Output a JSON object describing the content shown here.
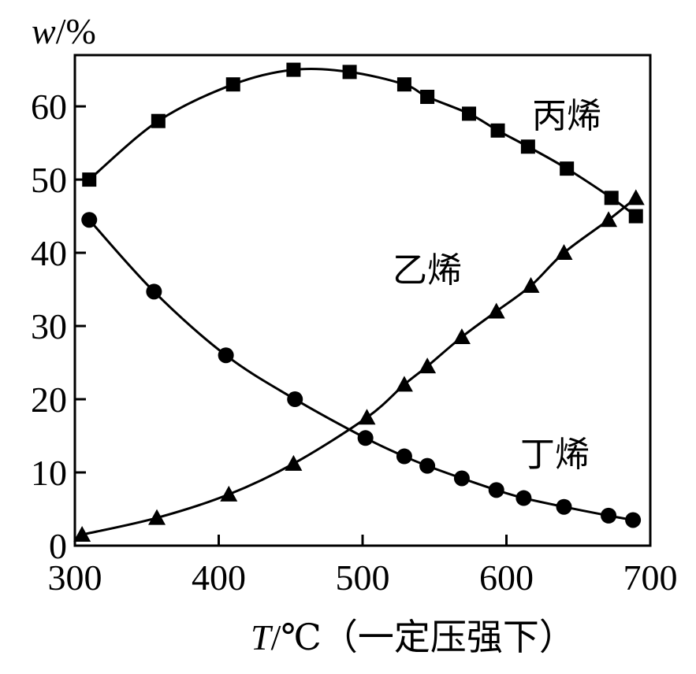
{
  "chart_data": {
    "type": "scatter",
    "title": "",
    "xlabel": {
      "var": "T",
      "unit": "/℃（一定压强下）"
    },
    "ylabel": {
      "var": "w",
      "unit": "/%"
    },
    "xlim": [
      300,
      700
    ],
    "ylim": [
      0,
      67
    ],
    "xticks": [
      300,
      400,
      500,
      600,
      700
    ],
    "yticks": [
      0,
      10,
      20,
      30,
      40,
      50,
      60
    ],
    "grid": false,
    "legend": "none",
    "series": [
      {
        "name": "丙烯",
        "marker": "square",
        "x": [
          310,
          358,
          410,
          452,
          491,
          529,
          545,
          574,
          594,
          615,
          642,
          673,
          690
        ],
        "y": [
          50,
          58,
          63,
          65,
          64.7,
          63,
          61.3,
          59,
          56.7,
          54.5,
          51.5,
          47.5,
          45
        ]
      },
      {
        "name": "乙烯",
        "marker": "triangle",
        "x": [
          305,
          357,
          407,
          452,
          503,
          529,
          545,
          569,
          593,
          617,
          640,
          671,
          690
        ],
        "y": [
          1.5,
          3.8,
          7,
          11.2,
          17.5,
          22,
          24.5,
          28.5,
          32,
          35.5,
          40,
          44.5,
          47.5
        ]
      },
      {
        "name": "丁烯",
        "marker": "circle",
        "x": [
          310,
          355,
          405,
          453,
          502,
          529,
          545,
          569,
          593,
          612,
          640,
          671,
          688
        ],
        "y": [
          44.5,
          34.7,
          26,
          20,
          14.7,
          12.2,
          10.9,
          9.2,
          7.6,
          6.5,
          5.3,
          4.1,
          3.5
        ]
      }
    ],
    "series_label_positions": [
      "upper-right",
      "center",
      "lower-right"
    ]
  }
}
